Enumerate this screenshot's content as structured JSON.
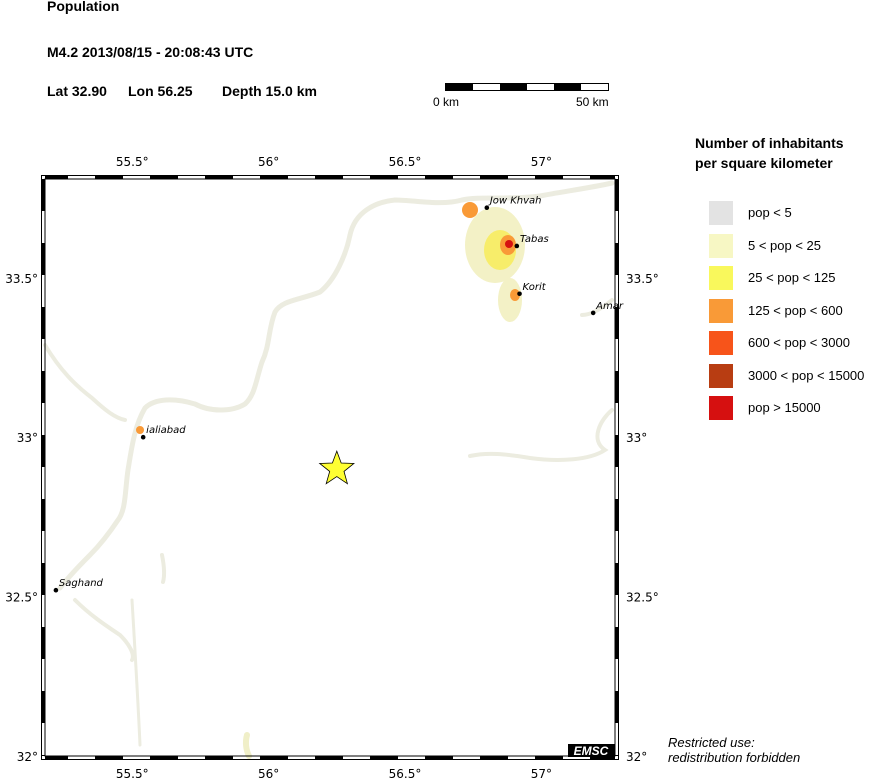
{
  "header": {
    "title": "Population",
    "event": "M4.2  2013/08/15 - 20:08:43 UTC",
    "lat_label": "Lat 32.90",
    "lon_label": "Lon  56.25",
    "depth_label": "Depth  15.0 km"
  },
  "scale_bar": {
    "start_label": "0 km",
    "end_label": "50 km"
  },
  "map": {
    "x_ticks": [
      "55.5°",
      "56°",
      "56.5°",
      "57°"
    ],
    "y_ticks": [
      "33.5°",
      "33°",
      "32.5°",
      "32°"
    ],
    "logo": "EMSC",
    "epicenter": {
      "lat": 32.9,
      "lon": 56.25,
      "symbol": "star",
      "color": "#ffff33"
    },
    "cities": [
      {
        "name": "Jow Khvah",
        "lat": 33.72,
        "lon": 56.8
      },
      {
        "name": "Tabas",
        "lat": 33.6,
        "lon": 56.91
      },
      {
        "name": "Korit",
        "lat": 33.45,
        "lon": 56.92
      },
      {
        "name": "Amar",
        "lat": 33.39,
        "lon": 57.19
      },
      {
        "name": "ialiabad",
        "lat": 33.0,
        "lon": 55.54
      },
      {
        "name": "Saghand",
        "lat": 32.52,
        "lon": 55.22
      }
    ]
  },
  "legend": {
    "title_line1": "Number of inhabitants",
    "title_line2": "per square kilometer",
    "items": [
      {
        "label": "pop < 5",
        "color": "#e3e3e3"
      },
      {
        "label": "5 < pop < 25",
        "color": "#f7f7c4"
      },
      {
        "label": "25 < pop < 125",
        "color": "#f9f85c"
      },
      {
        "label": "125 < pop < 600",
        "color": "#f99a37"
      },
      {
        "label": "600 < pop < 3000",
        "color": "#f7541a"
      },
      {
        "label": "3000 < pop < 15000",
        "color": "#b83d12"
      },
      {
        "label": "pop > 15000",
        "color": "#d61010"
      }
    ]
  },
  "restricted": {
    "line1": "Restricted use:",
    "line2": "redistribution forbidden"
  }
}
